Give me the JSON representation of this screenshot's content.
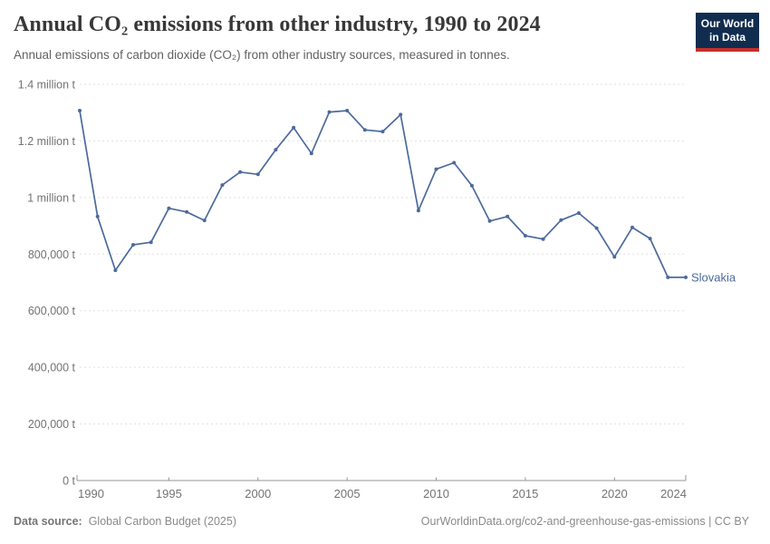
{
  "header": {
    "title": "Annual CO₂ emissions from other industry, 1990 to 2024",
    "subtitle": "Annual emissions of carbon dioxide (CO₂) from other industry sources, measured in tonnes.",
    "logo": {
      "line1": "Our World",
      "line2": "in Data"
    }
  },
  "chart_data": {
    "type": "line",
    "title": "Annual CO₂ emissions from other industry, 1990 to 2024",
    "xlabel": "",
    "ylabel": "",
    "unit": "t",
    "grid": "horizontal-dashed",
    "legend_position": "end-of-line-label",
    "ylim": [
      0,
      1400000
    ],
    "x": [
      1990,
      1991,
      1992,
      1993,
      1994,
      1995,
      1996,
      1997,
      1998,
      1999,
      2000,
      2001,
      2002,
      2003,
      2004,
      2005,
      2006,
      2007,
      2008,
      2009,
      2010,
      2011,
      2012,
      2013,
      2014,
      2015,
      2016,
      2017,
      2018,
      2019,
      2020,
      2021,
      2022,
      2023,
      2024
    ],
    "series": [
      {
        "name": "Slovakia",
        "color": "#4c6a9c",
        "values": [
          1307000,
          933000,
          743000,
          833000,
          842000,
          962000,
          949000,
          919000,
          1044000,
          1090000,
          1082000,
          1169000,
          1247000,
          1156000,
          1302000,
          1307000,
          1239000,
          1233000,
          1293000,
          954000,
          1100000,
          1123000,
          1042000,
          917000,
          933000,
          865000,
          853000,
          920000,
          945000,
          892000,
          790000,
          894000,
          855000,
          718000,
          718000
        ]
      }
    ],
    "yticks": [
      {
        "value": 1400000,
        "label": "1.4 million t"
      },
      {
        "value": 1200000,
        "label": "1.2 million t"
      },
      {
        "value": 1000000,
        "label": "1 million t"
      },
      {
        "value": 800000,
        "label": "800,000 t"
      },
      {
        "value": 600000,
        "label": "600,000 t"
      },
      {
        "value": 400000,
        "label": "400,000 t"
      },
      {
        "value": 200000,
        "label": "200,000 t"
      },
      {
        "value": 0,
        "label": "0 t"
      }
    ],
    "xticks": [
      1990,
      1995,
      2000,
      2005,
      2010,
      2015,
      2020,
      2024
    ]
  },
  "colors": {
    "line": "#4c6a9c",
    "grid": "#e0e0e0",
    "axis": "#949494",
    "tick_text": "#737373",
    "title": "#383838",
    "subtitle": "#616161",
    "logo_bg": "#102d50",
    "logo_red": "#c5302c"
  },
  "footer": {
    "datasource_label": "Data source:",
    "datasource": "Global Carbon Budget (2025)",
    "link": "OurWorldinData.org/co2-and-greenhouse-gas-emissions | CC BY"
  }
}
